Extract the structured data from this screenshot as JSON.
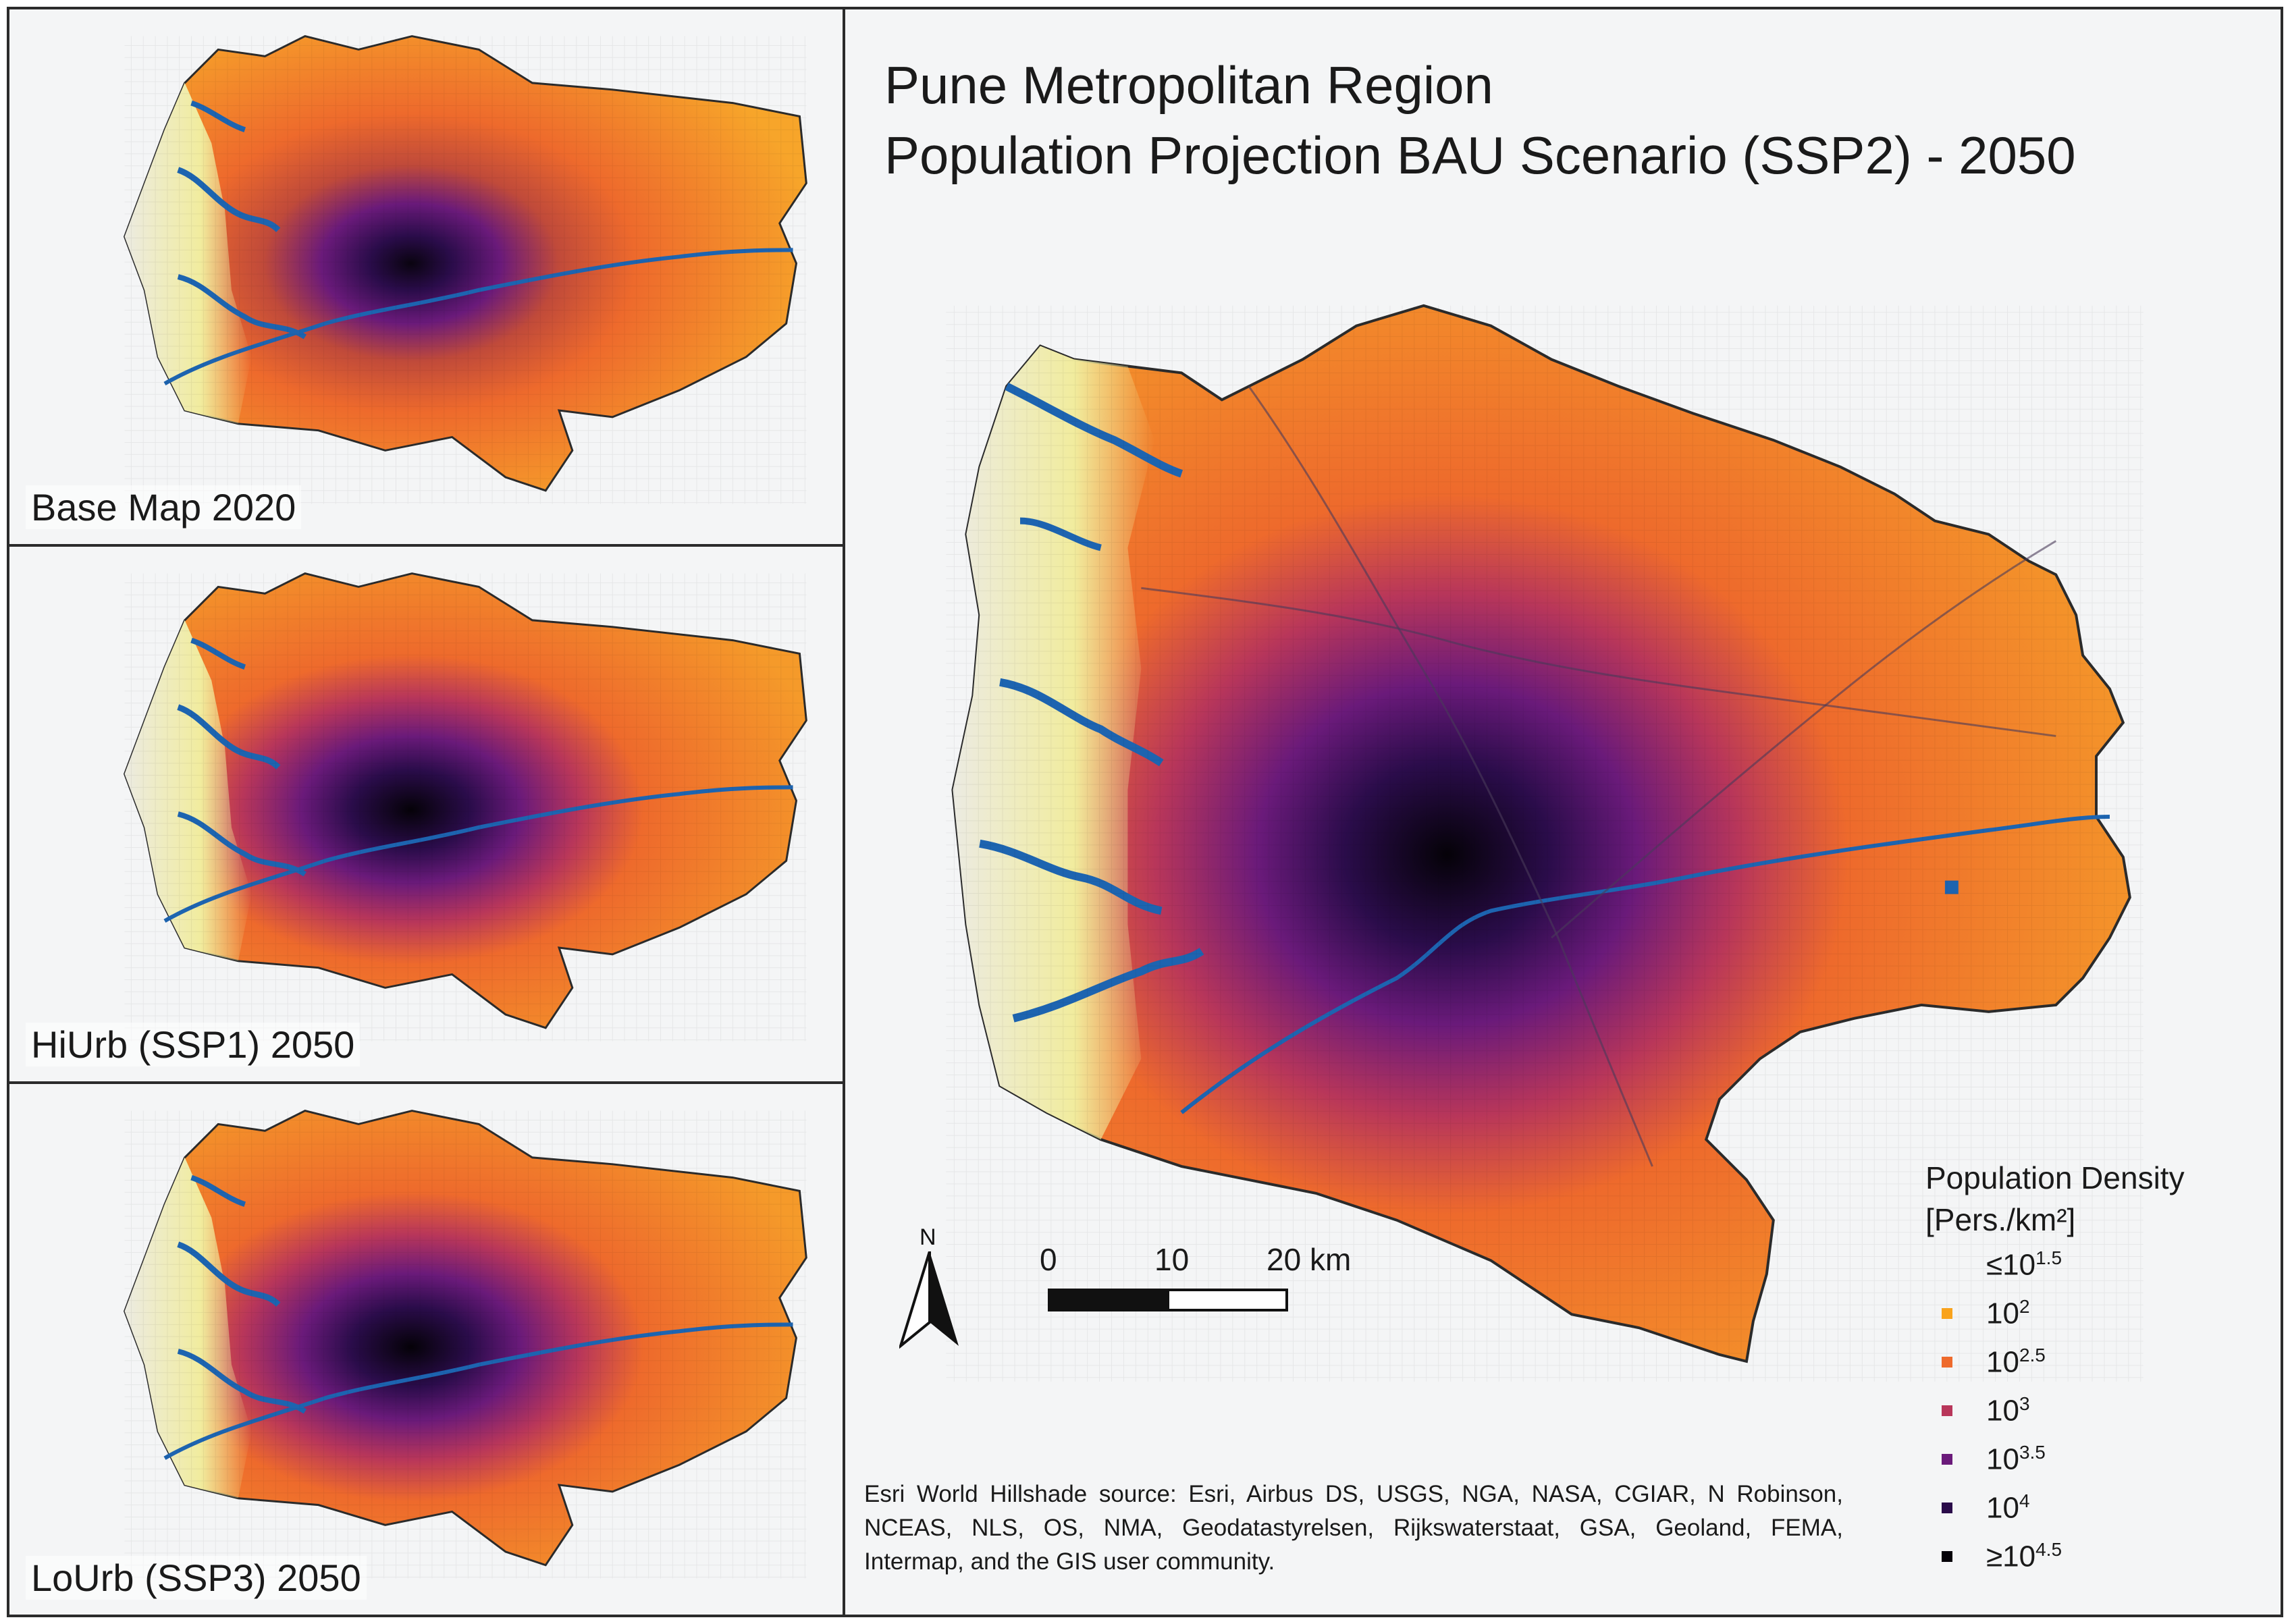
{
  "panels": {
    "base": {
      "label": "Base Map 2020"
    },
    "hiurb": {
      "label": "HiUrb (SSP1) 2050"
    },
    "lourb": {
      "label": "LoUrb (SSP3) 2050"
    }
  },
  "main": {
    "title_line1": "Pune Metropolitan Region",
    "title_line2": "Population Projection BAU Scenario (SSP2) - 2050"
  },
  "legend": {
    "title": "Population Density",
    "unit": "[Pers./km²]",
    "items": [
      {
        "label_base": "≤10",
        "label_exp": "1.5",
        "color": "#f6e16c"
      },
      {
        "label_base": "10",
        "label_exp": "2",
        "color": "#f9a31d"
      },
      {
        "label_base": "10",
        "label_exp": "2.5",
        "color": "#ee6a2c"
      },
      {
        "label_base": "10",
        "label_exp": "3",
        "color": "#b8365a"
      },
      {
        "label_base": "10",
        "label_exp": "3.5",
        "color": "#6a1a7a"
      },
      {
        "label_base": "10",
        "label_exp": "4",
        "color": "#2a0c4a"
      },
      {
        "label_base": "≥10",
        "label_exp": "4.5",
        "color": "#050208"
      }
    ]
  },
  "scale": {
    "label_0": "0",
    "label_10": "10",
    "label_20": "20 km"
  },
  "north": {
    "letter": "N"
  },
  "attribution": "Esri World Hillshade source: Esri, Airbus DS, USGS, NGA, NASA, CGIAR, N Robinson, NCEAS, NLS, OS, NMA, Geodatastyrelsen, Rijkswaterstaat, GSA, Geoland, FEMA, Intermap, and the GIS user community.",
  "colors": {
    "water": "#1d64b0",
    "hills": "#e8e8e0",
    "border": "#2b2b2b"
  }
}
